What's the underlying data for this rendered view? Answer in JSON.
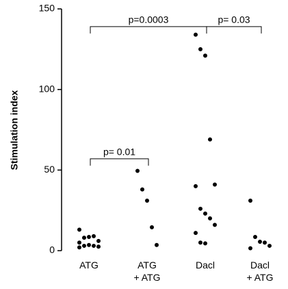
{
  "chart_data": {
    "type": "scatter",
    "y_label": "Stimulation index",
    "categories": [
      "ATG",
      "ATG\n+ ATG",
      "Dacl",
      "Dacl\n+ ATG"
    ],
    "values": [
      [
        13,
        8,
        8.5,
        9,
        6,
        5,
        3,
        3.5,
        3,
        2.5,
        2
      ],
      [
        49.5,
        38,
        31,
        14.5,
        3.5
      ],
      [
        134,
        125,
        121,
        69,
        41,
        40,
        26,
        23,
        20,
        16,
        11,
        5,
        4.5
      ],
      [
        31,
        8.5,
        5.5,
        5,
        3,
        1.5
      ]
    ],
    "color": "#000000",
    "ylim": [
      0,
      150
    ],
    "yticks": [
      0,
      50,
      100,
      150
    ],
    "annotations": [
      {
        "text": "p=0.0003",
        "from": 0,
        "to": 2,
        "y": 139
      },
      {
        "text": "p= 0.03",
        "from": 2,
        "to": 3,
        "y": 139
      },
      {
        "text": "p= 0.01",
        "from": 0,
        "to": 1,
        "y": 57
      }
    ]
  }
}
